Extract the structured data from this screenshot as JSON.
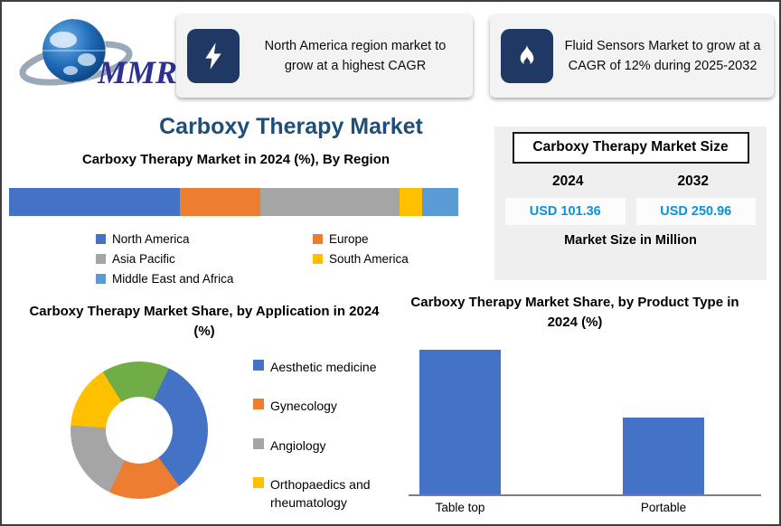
{
  "accent_colors": {
    "navy": "#1f3864",
    "title_blue": "#1f4e79",
    "value_blue": "#0b93d5",
    "brand_blue": "#2e3192"
  },
  "logo": {
    "brand": "MMR"
  },
  "callouts": [
    {
      "icon": "lightning-icon",
      "text": "North America region market to grow at a highest CAGR"
    },
    {
      "icon": "flame-icon",
      "text": "Fluid Sensors Market to grow at a CAGR of 12% during 2025-2032"
    }
  ],
  "page_title": "Carboxy Therapy Market",
  "market_size_panel": {
    "title": "Carboxy Therapy Market Size",
    "year_left": "2024",
    "year_right": "2032",
    "value_left": "USD 101.36",
    "value_right": "USD 250.96",
    "footer": "Market Size in Million"
  },
  "chart_data": [
    {
      "type": "bar",
      "subtype": "horizontal-stacked",
      "title": "Carboxy Therapy Market in 2024 (%), By Region",
      "categories": [
        "North America",
        "Europe",
        "Asia Pacific",
        "South America",
        "Middle East and Africa"
      ],
      "values": [
        38,
        18,
        31,
        5,
        8
      ],
      "colors": [
        "#4472c4",
        "#ed7d31",
        "#a5a5a5",
        "#ffc000",
        "#5b9bd5"
      ],
      "legend_position": "bottom",
      "grid": false
    },
    {
      "type": "pie",
      "subtype": "donut",
      "title": "Carboxy Therapy Market Share, by Application in 2024 (%)",
      "start_angle": -32,
      "slices": [
        {
          "label": "",
          "color": "#70ad47",
          "value": 16
        },
        {
          "label": "Aesthetic medicine",
          "color": "#4472c4",
          "value": 33
        },
        {
          "label": "Gynecology",
          "color": "#ed7d31",
          "value": 17
        },
        {
          "label": "Angiology",
          "color": "#a5a5a5",
          "value": 19
        },
        {
          "label": "Orthopaedics and rheumatology",
          "color": "#ffc000",
          "value": 15
        }
      ],
      "legend": [
        {
          "label": "Aesthetic medicine",
          "color": "#4472c4"
        },
        {
          "label": "Gynecology",
          "color": "#ed7d31"
        },
        {
          "label": "Angiology",
          "color": "#a5a5a5"
        },
        {
          "label": "Orthopaedics and rheumatology",
          "color": "#ffc000"
        }
      ],
      "legend_position": "right"
    },
    {
      "type": "bar",
      "subtype": "vertical",
      "title": "Carboxy Therapy Market Share, by Product Type in 2024 (%)",
      "categories": [
        "Table top",
        "Portable"
      ],
      "values": [
        100,
        53
      ],
      "color": "#4472c4",
      "ylim": [
        0,
        100
      ],
      "grid": false
    }
  ]
}
